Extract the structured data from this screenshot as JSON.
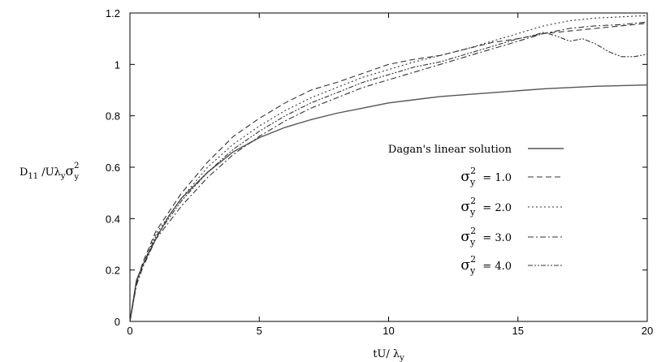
{
  "chart_data": {
    "type": "line",
    "xlabel": "tU/ λ_y",
    "ylabel": "D_11 /Uλ_y σ_y^2",
    "xlim": [
      0,
      20
    ],
    "ylim": [
      0,
      1.2
    ],
    "x_ticks": [
      0,
      5,
      10,
      15,
      20
    ],
    "y_ticks": [
      0,
      0.2,
      0.4,
      0.6,
      0.8,
      1,
      1.2
    ],
    "x_tick_labels": [
      "0",
      "5",
      "10",
      "15",
      "20"
    ],
    "y_tick_labels": [
      "0",
      "0.2",
      "0.4",
      "0.6",
      "0.8",
      "1",
      "1.2"
    ],
    "grid": false,
    "legend_position": "right",
    "series": [
      {
        "name": "Dagan's linear solution",
        "label_parts": {
          "text": "Dagan's linear solution"
        },
        "style": "solid",
        "color": "#555555",
        "points": [
          [
            0,
            0
          ],
          [
            0.25,
            0.16
          ],
          [
            0.5,
            0.22
          ],
          [
            1,
            0.32
          ],
          [
            1.5,
            0.41
          ],
          [
            2,
            0.48
          ],
          [
            3,
            0.58
          ],
          [
            4,
            0.66
          ],
          [
            5,
            0.715
          ],
          [
            6,
            0.755
          ],
          [
            7,
            0.785
          ],
          [
            8,
            0.81
          ],
          [
            9,
            0.83
          ],
          [
            10,
            0.85
          ],
          [
            12,
            0.875
          ],
          [
            14,
            0.89
          ],
          [
            16,
            0.905
          ],
          [
            18,
            0.915
          ],
          [
            20,
            0.92
          ]
        ]
      },
      {
        "name": "σ_y^2 = 1.0",
        "label_parts": {
          "sym": "σ",
          "sub": "y",
          "sup": "2",
          "rest": "= 1.0"
        },
        "style": "dashed",
        "color": "#333333",
        "points": [
          [
            0,
            0
          ],
          [
            0.25,
            0.15
          ],
          [
            0.5,
            0.23
          ],
          [
            1,
            0.35
          ],
          [
            2,
            0.5
          ],
          [
            3,
            0.62
          ],
          [
            4,
            0.72
          ],
          [
            5,
            0.79
          ],
          [
            6,
            0.85
          ],
          [
            7,
            0.9
          ],
          [
            8,
            0.93
          ],
          [
            9,
            0.965
          ],
          [
            10,
            1.0
          ],
          [
            11,
            1.02
          ],
          [
            12,
            1.035
          ],
          [
            13,
            1.06
          ],
          [
            14,
            1.085
          ],
          [
            15,
            1.1
          ],
          [
            16,
            1.12
          ],
          [
            17,
            1.13
          ],
          [
            18,
            1.14
          ],
          [
            19,
            1.15
          ],
          [
            20,
            1.16
          ]
        ]
      },
      {
        "name": "σ_y^2 = 2.0",
        "label_parts": {
          "sym": "σ",
          "sub": "y",
          "sup": "2",
          "rest": "= 2.0"
        },
        "style": "dotted",
        "color": "#333333",
        "points": [
          [
            0,
            0
          ],
          [
            0.25,
            0.15
          ],
          [
            0.5,
            0.22
          ],
          [
            1,
            0.34
          ],
          [
            2,
            0.48
          ],
          [
            3,
            0.6
          ],
          [
            4,
            0.69
          ],
          [
            5,
            0.76
          ],
          [
            6,
            0.82
          ],
          [
            7,
            0.87
          ],
          [
            8,
            0.91
          ],
          [
            9,
            0.95
          ],
          [
            10,
            0.98
          ],
          [
            11,
            1.01
          ],
          [
            12,
            1.035
          ],
          [
            13,
            1.06
          ],
          [
            14,
            1.09
          ],
          [
            15,
            1.12
          ],
          [
            16,
            1.15
          ],
          [
            17,
            1.17
          ],
          [
            18,
            1.18
          ],
          [
            19,
            1.185
          ],
          [
            20,
            1.19
          ]
        ]
      },
      {
        "name": "σ_y^2 = 3.0",
        "label_parts": {
          "sym": "σ",
          "sub": "y",
          "sup": "2",
          "rest": "= 3.0"
        },
        "style": "dashdot",
        "color": "#333333",
        "points": [
          [
            0,
            0
          ],
          [
            0.25,
            0.14
          ],
          [
            0.5,
            0.21
          ],
          [
            1,
            0.32
          ],
          [
            2,
            0.45
          ],
          [
            3,
            0.56
          ],
          [
            4,
            0.65
          ],
          [
            5,
            0.72
          ],
          [
            6,
            0.78
          ],
          [
            7,
            0.83
          ],
          [
            8,
            0.87
          ],
          [
            9,
            0.91
          ],
          [
            10,
            0.94
          ],
          [
            11,
            0.97
          ],
          [
            12,
            1.0
          ],
          [
            13,
            1.03
          ],
          [
            14,
            1.06
          ],
          [
            15,
            1.09
          ],
          [
            16,
            1.12
          ],
          [
            17,
            1.14
          ],
          [
            18,
            1.15
          ],
          [
            19,
            1.155
          ],
          [
            20,
            1.165
          ]
        ]
      },
      {
        "name": "σ_y^2 = 4.0",
        "label_parts": {
          "sym": "σ",
          "sub": "y",
          "sup": "2",
          "rest": "= 4.0"
        },
        "style": "dashdotdot",
        "color": "#333333",
        "points": [
          [
            0,
            0
          ],
          [
            0.25,
            0.15
          ],
          [
            0.5,
            0.22
          ],
          [
            1,
            0.33
          ],
          [
            2,
            0.47
          ],
          [
            3,
            0.58
          ],
          [
            4,
            0.67
          ],
          [
            5,
            0.74
          ],
          [
            6,
            0.8
          ],
          [
            7,
            0.85
          ],
          [
            8,
            0.89
          ],
          [
            9,
            0.93
          ],
          [
            10,
            0.96
          ],
          [
            11,
            0.99
          ],
          [
            12,
            1.01
          ],
          [
            13,
            1.04
          ],
          [
            14,
            1.07
          ],
          [
            15,
            1.1
          ],
          [
            15.5,
            1.11
          ],
          [
            16,
            1.125
          ],
          [
            16.5,
            1.11
          ],
          [
            17,
            1.09
          ],
          [
            17.5,
            1.1
          ],
          [
            18,
            1.08
          ],
          [
            18.5,
            1.05
          ],
          [
            19,
            1.03
          ],
          [
            19.5,
            1.03
          ],
          [
            20,
            1.04
          ]
        ]
      }
    ]
  }
}
